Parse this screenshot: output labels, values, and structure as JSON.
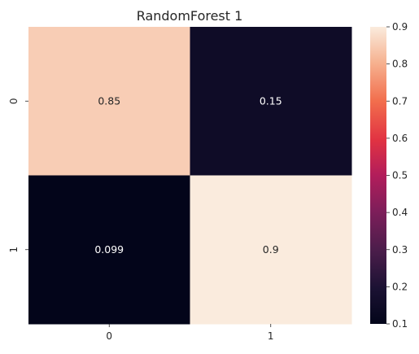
{
  "chart_data": {
    "type": "heatmap",
    "title": "RandomForest 1",
    "xlabel": "",
    "ylabel": "",
    "x_categories": [
      "0",
      "1"
    ],
    "y_categories": [
      "0",
      "1"
    ],
    "values": [
      [
        0.85,
        0.15
      ],
      [
        0.099,
        0.9
      ]
    ],
    "value_labels": [
      [
        "0.85",
        "0.15"
      ],
      [
        "0.099",
        "0.9"
      ]
    ],
    "colorbar": {
      "range": [
        0.1,
        0.9
      ],
      "ticks": [
        "0.1",
        "0.2",
        "0.3",
        "0.4",
        "0.5",
        "0.6",
        "0.7",
        "0.8",
        "0.9"
      ],
      "colormap": "rocket"
    },
    "grid": false,
    "legend": "colorbar-right"
  }
}
